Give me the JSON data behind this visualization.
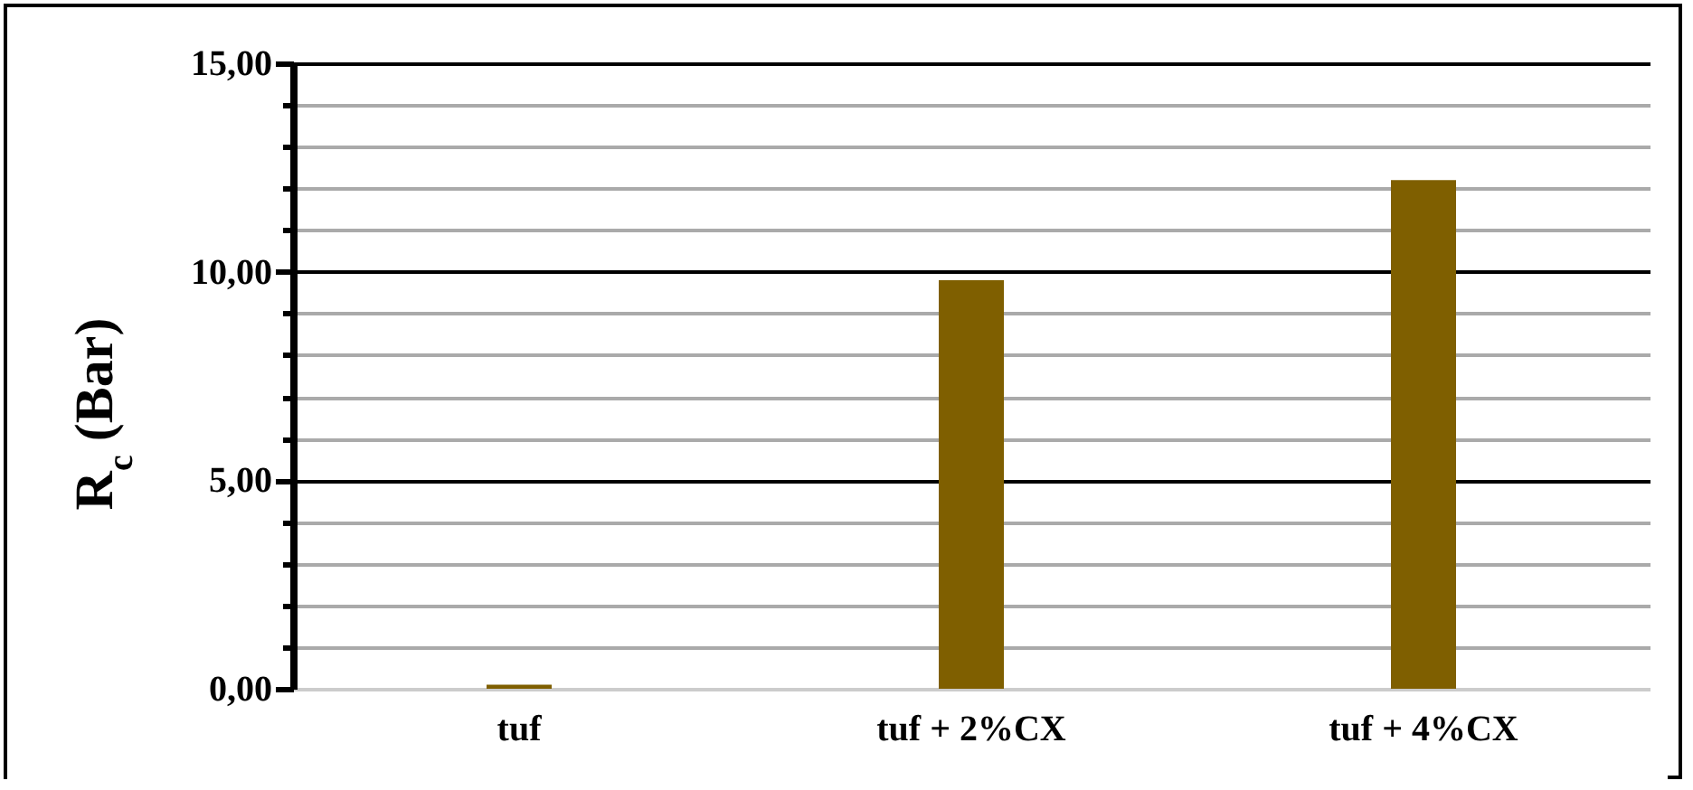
{
  "chart_data": {
    "type": "bar",
    "ylabel": "R$_{c}$ (Bar)",
    "categories": [
      "tuf",
      "tuf + 2%CX",
      "tuf + 4%CX"
    ],
    "values": [
      0.1,
      9.8,
      12.2
    ],
    "color": "#7f5f00",
    "ylim": [
      0,
      15
    ],
    "yticks": [
      {
        "value": 0,
        "label": "0,00"
      },
      {
        "value": 1,
        "label": null
      },
      {
        "value": 2,
        "label": null
      },
      {
        "value": 3,
        "label": null
      },
      {
        "value": 4,
        "label": null
      },
      {
        "value": 5,
        "label": "5,00"
      },
      {
        "value": 6,
        "label": null
      },
      {
        "value": 7,
        "label": null
      },
      {
        "value": 8,
        "label": null
      },
      {
        "value": 9,
        "label": null
      },
      {
        "value": 10,
        "label": "10,00"
      },
      {
        "value": 11,
        "label": null
      },
      {
        "value": 12,
        "label": null
      },
      {
        "value": 13,
        "label": null
      },
      {
        "value": 14,
        "label": null
      },
      {
        "value": 15,
        "label": "15,00"
      }
    ],
    "grid": true
  }
}
